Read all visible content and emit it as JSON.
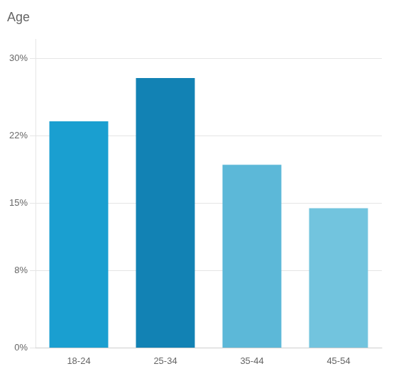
{
  "chart_data": {
    "type": "bar",
    "title": "Age",
    "categories": [
      "18-24",
      "25-34",
      "35-44",
      "45-54"
    ],
    "values": [
      23.5,
      28.0,
      19.0,
      14.5
    ],
    "colors": [
      "#1a9fd0",
      "#1282b4",
      "#5cb8d8",
      "#72c4de"
    ],
    "ylim": [
      0,
      32
    ],
    "yticks": [
      {
        "value": 0,
        "label": "0%"
      },
      {
        "value": 8,
        "label": "8%"
      },
      {
        "value": 15,
        "label": "15%"
      },
      {
        "value": 22,
        "label": "22%"
      },
      {
        "value": 30,
        "label": "30%"
      }
    ],
    "grid": true
  }
}
